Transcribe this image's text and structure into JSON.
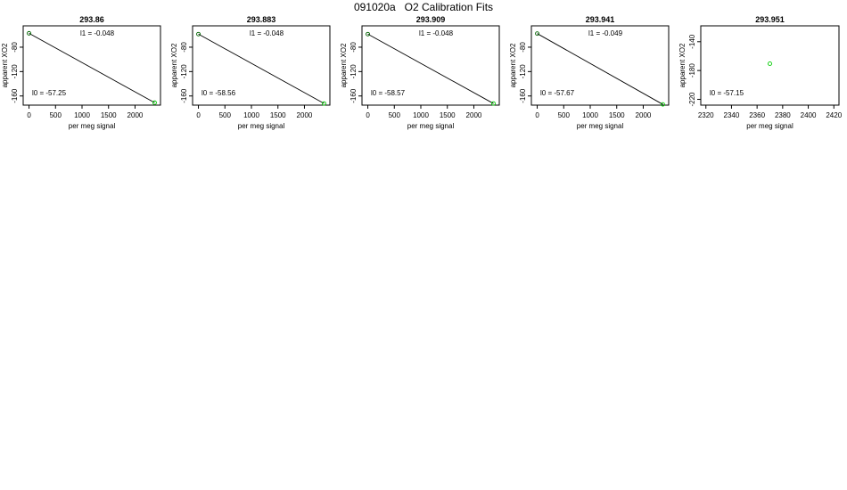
{
  "figure": {
    "title": "091020a   O2 Calibration Fits"
  },
  "chart_data": [
    {
      "type": "scatter",
      "title": "293.86",
      "xlabel": "per meg signal",
      "ylabel": "apparent XO2",
      "xlim": [
        -110,
        2480
      ],
      "ylim": [
        -175,
        -45
      ],
      "x_ticks": [
        0,
        500,
        1000,
        1500,
        2000
      ],
      "y_ticks": [
        -160,
        -120,
        -80
      ],
      "points": [
        {
          "x": 0,
          "y": -57.25,
          "color": "#006400"
        },
        {
          "x": 2370,
          "y": -171.0,
          "color": "#00cc00"
        }
      ],
      "fit_line": {
        "x0": 0,
        "x1": 2370,
        "intercept": -57.25,
        "slope": -0.048
      },
      "annotations": {
        "slope_label": "l1 =  -0.048",
        "intercept_label": "l0 =  -57.25"
      }
    },
    {
      "type": "scatter",
      "title": "293.883",
      "xlabel": "per meg signal",
      "ylabel": "apparent XO2",
      "xlim": [
        -110,
        2480
      ],
      "ylim": [
        -175,
        -45
      ],
      "x_ticks": [
        0,
        500,
        1000,
        1500,
        2000
      ],
      "y_ticks": [
        -160,
        -120,
        -80
      ],
      "points": [
        {
          "x": 0,
          "y": -58.56,
          "color": "#006400"
        },
        {
          "x": 2370,
          "y": -172.3,
          "color": "#00cc00"
        }
      ],
      "fit_line": {
        "x0": 0,
        "x1": 2370,
        "intercept": -58.56,
        "slope": -0.048
      },
      "annotations": {
        "slope_label": "l1 =  -0.048",
        "intercept_label": "l0 =  -58.56"
      }
    },
    {
      "type": "scatter",
      "title": "293.909",
      "xlabel": "per meg signal",
      "ylabel": "apparent XO2",
      "xlim": [
        -110,
        2480
      ],
      "ylim": [
        -175,
        -45
      ],
      "x_ticks": [
        0,
        500,
        1000,
        1500,
        2000
      ],
      "y_ticks": [
        -160,
        -120,
        -80
      ],
      "points": [
        {
          "x": 0,
          "y": -58.57,
          "color": "#006400"
        },
        {
          "x": 2370,
          "y": -172.3,
          "color": "#00cc00"
        }
      ],
      "fit_line": {
        "x0": 0,
        "x1": 2370,
        "intercept": -58.57,
        "slope": -0.048
      },
      "annotations": {
        "slope_label": "l1 =  -0.048",
        "intercept_label": "l0 =  -58.57"
      }
    },
    {
      "type": "scatter",
      "title": "293.941",
      "xlabel": "per meg signal",
      "ylabel": "apparent XO2",
      "xlim": [
        -110,
        2480
      ],
      "ylim": [
        -175,
        -45
      ],
      "x_ticks": [
        0,
        500,
        1000,
        1500,
        2000
      ],
      "y_ticks": [
        -160,
        -120,
        -80
      ],
      "points": [
        {
          "x": 0,
          "y": -57.67,
          "color": "#006400"
        },
        {
          "x": 2370,
          "y": -173.8,
          "color": "#00cc00"
        }
      ],
      "fit_line": {
        "x0": 0,
        "x1": 2370,
        "intercept": -57.67,
        "slope": -0.049
      },
      "annotations": {
        "slope_label": "l1 =  -0.049",
        "intercept_label": "l0 =  -57.67"
      }
    },
    {
      "type": "scatter",
      "title": "293.951",
      "xlabel": "per meg signal",
      "ylabel": "apparent XO2",
      "xlim": [
        2316,
        2424
      ],
      "ylim": [
        -228,
        -118
      ],
      "x_ticks": [
        2320,
        2340,
        2360,
        2380,
        2400,
        2420
      ],
      "y_ticks": [
        -220,
        -180,
        -140
      ],
      "points": [
        {
          "x": 2370,
          "y": -170.5,
          "color": "#00cc00"
        }
      ],
      "fit_line": null,
      "annotations": {
        "slope_label": "",
        "intercept_label": "l0 =  -57.15"
      }
    }
  ]
}
